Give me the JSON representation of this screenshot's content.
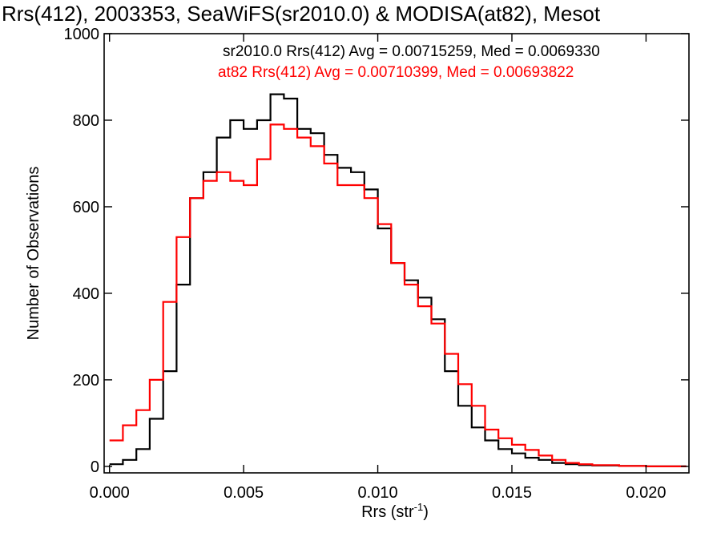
{
  "chart_data": {
    "type": "line",
    "title": "Rrs(412), 2003353, SeaWiFS(sr2010.0) & MODISA(at82), Mesot",
    "xlabel": "Rrs (str",
    "xlabel_sup": "-1",
    "xlabel_end": ")",
    "ylabel": "Number of Observations",
    "xlim": [
      -0.0002,
      0.0216
    ],
    "ylim": [
      -15,
      1000
    ],
    "xticks": [
      0.0,
      0.005,
      0.01,
      0.015,
      0.02
    ],
    "xtick_labels": [
      "0.000",
      "0.005",
      "0.010",
      "0.015",
      "0.020"
    ],
    "yticks": [
      0,
      200,
      400,
      600,
      800,
      1000
    ],
    "ytick_labels": [
      "0",
      "200",
      "400",
      "600",
      "800",
      "1000"
    ],
    "grid": false,
    "legend_position": "top-right",
    "series": [
      {
        "name": "sr2010.0",
        "legend_text": "sr2010.0 Rrs(412) Avg = 0.00715259, Med = 0.0069330",
        "color": "#000000",
        "x": [
          0.0,
          0.0005,
          0.001,
          0.0015,
          0.002,
          0.0025,
          0.003,
          0.0035,
          0.004,
          0.0045,
          0.005,
          0.0055,
          0.006,
          0.0065,
          0.007,
          0.0075,
          0.008,
          0.0085,
          0.009,
          0.0095,
          0.01,
          0.0105,
          0.011,
          0.0115,
          0.012,
          0.0125,
          0.013,
          0.0135,
          0.014,
          0.0145,
          0.015,
          0.0155,
          0.016,
          0.0165,
          0.017,
          0.0175,
          0.018,
          0.019,
          0.02,
          0.0215
        ],
        "y": [
          5,
          15,
          40,
          110,
          220,
          420,
          620,
          680,
          760,
          800,
          780,
          800,
          860,
          850,
          780,
          770,
          720,
          690,
          680,
          640,
          550,
          470,
          430,
          390,
          340,
          220,
          140,
          90,
          60,
          40,
          30,
          20,
          15,
          8,
          5,
          3,
          2,
          1,
          0,
          0
        ]
      },
      {
        "name": "at82",
        "legend_text": "at82 Rrs(412) Avg = 0.00710399, Med = 0.00693822",
        "color": "#ff0000",
        "x": [
          0.0,
          0.0005,
          0.001,
          0.0015,
          0.002,
          0.0025,
          0.003,
          0.0035,
          0.004,
          0.0045,
          0.005,
          0.0055,
          0.006,
          0.0065,
          0.007,
          0.0075,
          0.008,
          0.0085,
          0.009,
          0.0095,
          0.01,
          0.0105,
          0.011,
          0.0115,
          0.012,
          0.0125,
          0.013,
          0.0135,
          0.014,
          0.0145,
          0.015,
          0.0155,
          0.016,
          0.0165,
          0.017,
          0.0175,
          0.018,
          0.019,
          0.02,
          0.0215
        ],
        "y": [
          60,
          95,
          130,
          200,
          380,
          530,
          620,
          660,
          680,
          660,
          650,
          710,
          790,
          780,
          760,
          740,
          700,
          650,
          650,
          620,
          560,
          470,
          420,
          370,
          330,
          260,
          190,
          140,
          85,
          65,
          50,
          38,
          25,
          15,
          8,
          5,
          3,
          1,
          0,
          0
        ]
      }
    ]
  }
}
